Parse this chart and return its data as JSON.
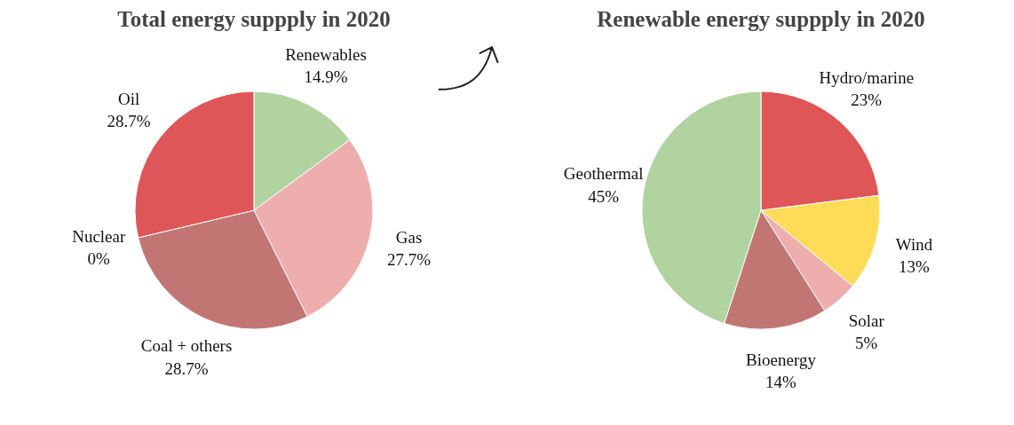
{
  "chart_data": [
    {
      "type": "pie",
      "title": "Total energy suppply in 2020",
      "categories": [
        "Renewables",
        "Gas",
        "Coal + others",
        "Nuclear",
        "Oil"
      ],
      "values": [
        14.9,
        27.7,
        28.7,
        0,
        28.7
      ],
      "value_labels": [
        "14.9%",
        "27.7%",
        "28.7%",
        "0%",
        "28.7%"
      ],
      "colors": [
        "#b0d39f",
        "#eeaeae",
        "#c27674",
        "#c27674",
        "#de5658"
      ]
    },
    {
      "type": "pie",
      "title": "Renewable energy suppply in 2020",
      "categories": [
        "Hydro/marine",
        "Wind",
        "Solar",
        "Bioenergy",
        "Geothermal"
      ],
      "values": [
        23,
        13,
        5,
        14,
        45
      ],
      "value_labels": [
        "23%",
        "13%",
        "5%",
        "14%",
        "45%"
      ],
      "colors": [
        "#de5658",
        "#fedc58",
        "#eeaeae",
        "#c27674",
        "#b0d39f"
      ]
    }
  ]
}
